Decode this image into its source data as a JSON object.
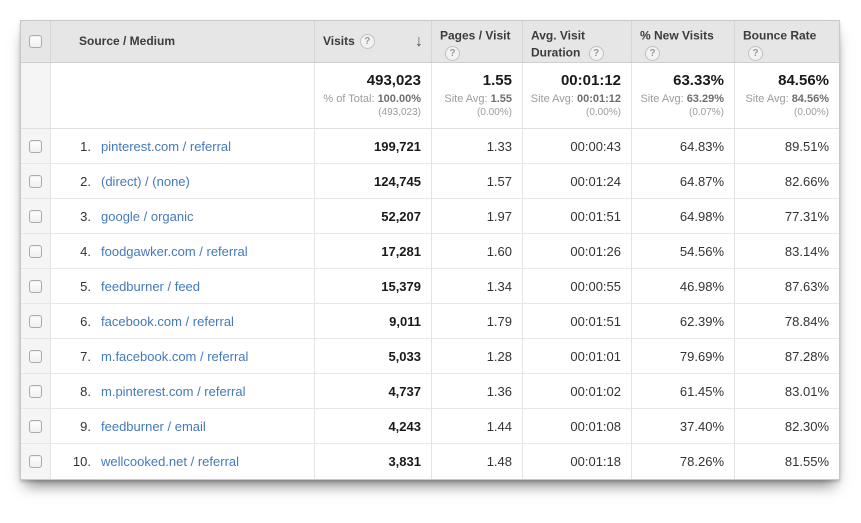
{
  "columns": {
    "source": "Source / Medium",
    "visits": "Visits",
    "pages": "Pages / Visit",
    "duration": "Avg. Visit Duration",
    "new_visits": "% New Visits",
    "bounce": "Bounce Rate"
  },
  "icons": {
    "help": "?",
    "sort_desc": "↓"
  },
  "summary": {
    "visits": {
      "value": "493,023",
      "label": "% of Total:",
      "avg": "100.00%",
      "paren": "(493,023)"
    },
    "pages": {
      "value": "1.55",
      "label": "Site Avg:",
      "avg": "1.55",
      "paren": "(0.00%)"
    },
    "duration": {
      "value": "00:01:12",
      "label": "Site Avg:",
      "avg": "00:01:12",
      "paren": "(0.00%)"
    },
    "new_visits": {
      "value": "63.33%",
      "label": "Site Avg:",
      "avg": "63.29%",
      "paren": "(0.07%)"
    },
    "bounce": {
      "value": "84.56%",
      "label": "Site Avg:",
      "avg": "84.56%",
      "paren": "(0.00%)"
    }
  },
  "rows": [
    {
      "rank": "1.",
      "source": "pinterest.com / referral",
      "visits": "199,721",
      "pages": "1.33",
      "duration": "00:00:43",
      "new_visits": "64.83%",
      "bounce": "89.51%"
    },
    {
      "rank": "2.",
      "source": "(direct) / (none)",
      "visits": "124,745",
      "pages": "1.57",
      "duration": "00:01:24",
      "new_visits": "64.87%",
      "bounce": "82.66%"
    },
    {
      "rank": "3.",
      "source": "google / organic",
      "visits": "52,207",
      "pages": "1.97",
      "duration": "00:01:51",
      "new_visits": "64.98%",
      "bounce": "77.31%"
    },
    {
      "rank": "4.",
      "source": "foodgawker.com / referral",
      "visits": "17,281",
      "pages": "1.60",
      "duration": "00:01:26",
      "new_visits": "54.56%",
      "bounce": "83.14%"
    },
    {
      "rank": "5.",
      "source": "feedburner / feed",
      "visits": "15,379",
      "pages": "1.34",
      "duration": "00:00:55",
      "new_visits": "46.98%",
      "bounce": "87.63%"
    },
    {
      "rank": "6.",
      "source": "facebook.com / referral",
      "visits": "9,011",
      "pages": "1.79",
      "duration": "00:01:51",
      "new_visits": "62.39%",
      "bounce": "78.84%"
    },
    {
      "rank": "7.",
      "source": "m.facebook.com / referral",
      "visits": "5,033",
      "pages": "1.28",
      "duration": "00:01:01",
      "new_visits": "79.69%",
      "bounce": "87.28%"
    },
    {
      "rank": "8.",
      "source": "m.pinterest.com / referral",
      "visits": "4,737",
      "pages": "1.36",
      "duration": "00:01:02",
      "new_visits": "61.45%",
      "bounce": "83.01%"
    },
    {
      "rank": "9.",
      "source": "feedburner / email",
      "visits": "4,243",
      "pages": "1.44",
      "duration": "00:01:08",
      "new_visits": "37.40%",
      "bounce": "82.30%"
    },
    {
      "rank": "10.",
      "source": "wellcooked.net / referral",
      "visits": "3,831",
      "pages": "1.48",
      "duration": "00:01:18",
      "new_visits": "78.26%",
      "bounce": "81.55%"
    }
  ],
  "colors": {
    "link_blue": "#4479bd",
    "header_bg": "#e6e6e6",
    "checkbox_column_bg": "#f5f5f5",
    "border": "#e3e3e3",
    "muted_text": "#9c9c9c"
  }
}
